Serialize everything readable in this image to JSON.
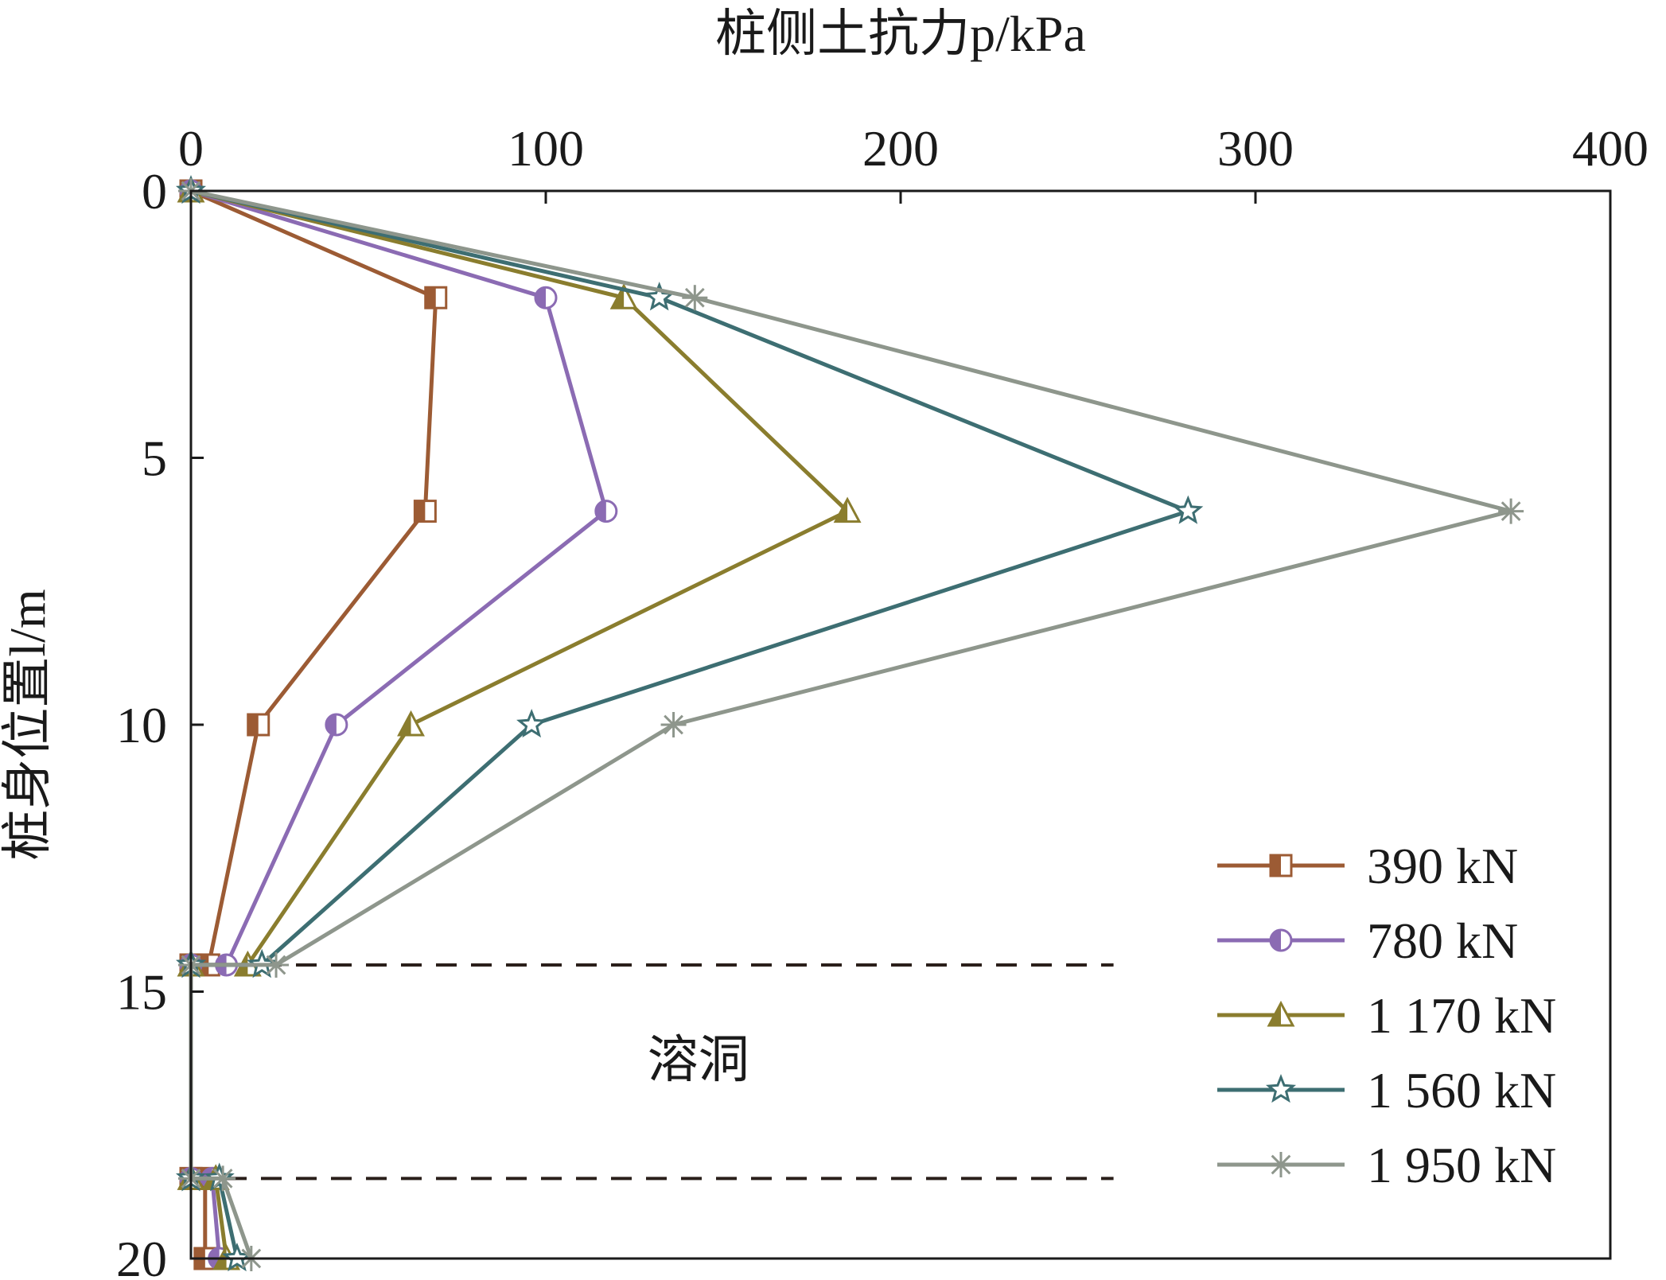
{
  "chart_data": {
    "type": "line",
    "title": "",
    "xlabel": "桩侧土抗力p/kPa",
    "ylabel": "桩身位置l/m",
    "xlim": [
      0,
      400
    ],
    "ylim": [
      0,
      20
    ],
    "x_axis_position": "top",
    "y_axis_inverted": true,
    "x_ticks": [
      0,
      100,
      200,
      300,
      400
    ],
    "y_ticks": [
      0,
      5,
      10,
      15,
      20
    ],
    "grid": false,
    "legend_position": "bottom-right",
    "annotation": {
      "text": "溶洞",
      "x": 143,
      "y": 16.6
    },
    "reference_lines": [
      {
        "y": 14.5,
        "x_start": 0,
        "x_end": 260,
        "style": "dashed",
        "color": "#2a1f1a"
      },
      {
        "y": 18.5,
        "x_start": 0,
        "x_end": 260,
        "style": "dashed",
        "color": "#2a1f1a"
      }
    ],
    "series": [
      {
        "name": "390 kN",
        "color": "#9c5b34",
        "marker": "half-square",
        "points": [
          [
            0,
            0
          ],
          [
            69,
            2
          ],
          [
            66,
            6
          ],
          [
            19,
            10
          ],
          [
            5,
            14.5
          ],
          [
            0,
            14.5
          ],
          [
            0,
            18.5
          ],
          [
            4,
            18.5
          ],
          [
            4,
            20
          ]
        ]
      },
      {
        "name": "780 kN",
        "color": "#8b6bb3",
        "marker": "half-circle",
        "points": [
          [
            0,
            0
          ],
          [
            100,
            2
          ],
          [
            117,
            6
          ],
          [
            41,
            10
          ],
          [
            10,
            14.5
          ],
          [
            0,
            14.5
          ],
          [
            0,
            18.5
          ],
          [
            6,
            18.5
          ],
          [
            8,
            20
          ]
        ]
      },
      {
        "name": "1 170 kN",
        "color": "#8a7d2e",
        "marker": "half-triangle",
        "points": [
          [
            0,
            0
          ],
          [
            122,
            2
          ],
          [
            185,
            6
          ],
          [
            62,
            10
          ],
          [
            16,
            14.5
          ],
          [
            0,
            14.5
          ],
          [
            0,
            18.5
          ],
          [
            7,
            18.5
          ],
          [
            10,
            20
          ]
        ]
      },
      {
        "name": "1 560 kN",
        "color": "#3d6e72",
        "marker": "star",
        "points": [
          [
            0,
            0
          ],
          [
            132,
            2
          ],
          [
            281,
            6
          ],
          [
            96,
            10
          ],
          [
            20,
            14.5
          ],
          [
            0,
            14.5
          ],
          [
            0,
            18.5
          ],
          [
            8,
            18.5
          ],
          [
            13,
            20
          ]
        ]
      },
      {
        "name": "1 950 kN",
        "color": "#8e968c",
        "marker": "asterisk",
        "points": [
          [
            0,
            0
          ],
          [
            142,
            2
          ],
          [
            372,
            6
          ],
          [
            136,
            10
          ],
          [
            24,
            14.5
          ],
          [
            0,
            14.5
          ],
          [
            0,
            18.5
          ],
          [
            9,
            18.5
          ],
          [
            17,
            20
          ]
        ]
      }
    ]
  }
}
